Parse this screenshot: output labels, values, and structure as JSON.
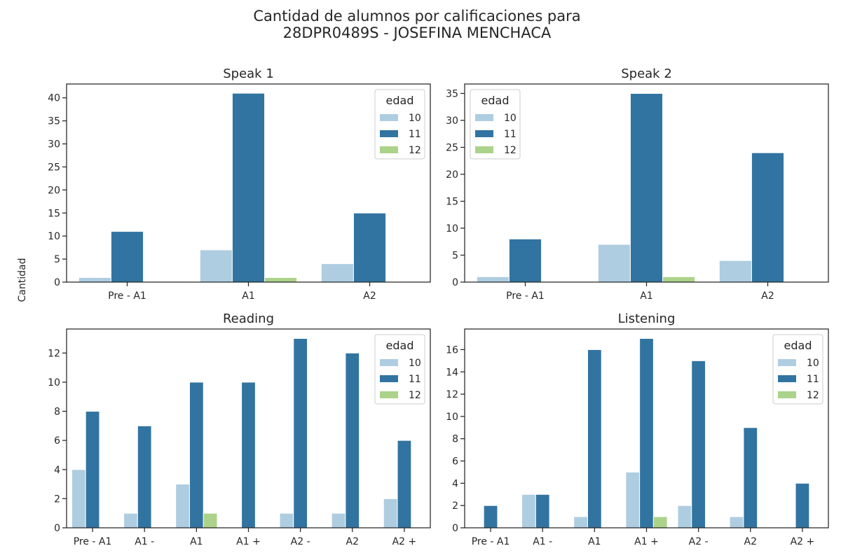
{
  "figure": {
    "title_line1": "Cantidad de alumnos por calificaciones para",
    "title_line2": "28DPR0489S - JOSEFINA MENCHACA",
    "ylabel": "Cantidad"
  },
  "colors": {
    "10": "#aecde1",
    "11": "#3274a1",
    "12": "#acd38a",
    "axis": "#262626"
  },
  "legend_title": "edad",
  "chart_data": [
    {
      "type": "bar",
      "title": "Speak 1",
      "categories": [
        "Pre - A1",
        "A1",
        "A2"
      ],
      "series": [
        {
          "name": "10",
          "values": [
            1,
            7,
            4
          ]
        },
        {
          "name": "11",
          "values": [
            11,
            41,
            15
          ]
        },
        {
          "name": "12",
          "values": [
            0,
            1,
            0
          ]
        }
      ],
      "ylim": [
        0,
        43
      ],
      "yticks": [
        0,
        5,
        10,
        15,
        20,
        25,
        30,
        35,
        40
      ],
      "legend_placement": "top-right"
    },
    {
      "type": "bar",
      "title": "Speak 2",
      "categories": [
        "Pre - A1",
        "A1",
        "A2"
      ],
      "series": [
        {
          "name": "10",
          "values": [
            1,
            7,
            4
          ]
        },
        {
          "name": "11",
          "values": [
            8,
            35,
            24
          ]
        },
        {
          "name": "12",
          "values": [
            0,
            1,
            0
          ]
        }
      ],
      "ylim": [
        0,
        36.75
      ],
      "yticks": [
        0,
        5,
        10,
        15,
        20,
        25,
        30,
        35
      ],
      "legend_placement": "top-left"
    },
    {
      "type": "bar",
      "title": "Reading",
      "categories": [
        "Pre - A1",
        "A1 -",
        "A1",
        "A1 +",
        "A2 -",
        "A2",
        "A2 +"
      ],
      "series": [
        {
          "name": "10",
          "values": [
            4,
            1,
            3,
            0,
            1,
            1,
            2
          ]
        },
        {
          "name": "11",
          "values": [
            8,
            7,
            10,
            10,
            13,
            12,
            6
          ]
        },
        {
          "name": "12",
          "values": [
            0,
            0,
            1,
            0,
            0,
            0,
            0
          ]
        }
      ],
      "ylim": [
        0,
        13.65
      ],
      "yticks": [
        0,
        2,
        4,
        6,
        8,
        10,
        12
      ],
      "legend_placement": "top-right"
    },
    {
      "type": "bar",
      "title": "Listening",
      "categories": [
        "Pre - A1",
        "A1 -",
        "A1",
        "A1 +",
        "A2 -",
        "A2",
        "A2 +"
      ],
      "series": [
        {
          "name": "10",
          "values": [
            0,
            3,
            1,
            5,
            2,
            1,
            0
          ]
        },
        {
          "name": "11",
          "values": [
            2,
            3,
            16,
            17,
            15,
            9,
            4
          ]
        },
        {
          "name": "12",
          "values": [
            0,
            0,
            0,
            1,
            0,
            0,
            0
          ]
        }
      ],
      "ylim": [
        0,
        17.85
      ],
      "yticks": [
        0,
        2,
        4,
        6,
        8,
        10,
        12,
        14,
        16
      ],
      "legend_placement": "top-right"
    }
  ]
}
